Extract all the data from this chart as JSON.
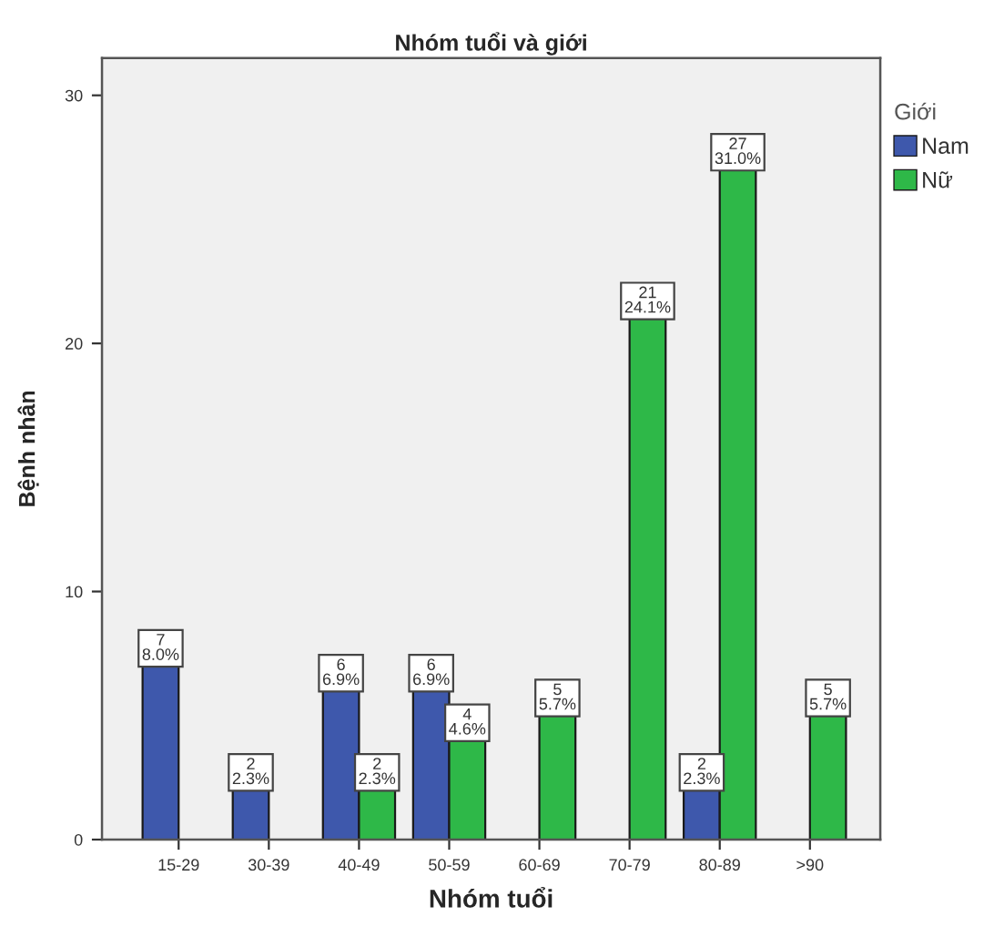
{
  "chart_data": {
    "type": "bar",
    "title": "Nhóm tuổi và giới",
    "xlabel": "Nhóm tuổi",
    "ylabel": "Bệnh nhân",
    "legend_title": "Giới",
    "categories": [
      "15-29",
      "30-39",
      "40-49",
      "50-59",
      "60-69",
      "70-79",
      "80-89",
      ">90"
    ],
    "series": [
      {
        "name": "Nam",
        "color": "#3e58ac",
        "values": [
          7,
          2,
          6,
          6,
          null,
          null,
          2,
          null
        ],
        "value_labels": [
          "7\n8.0%",
          "2\n2.3%",
          "6\n6.9%",
          "6\n6.9%",
          null,
          null,
          "2\n2.3%",
          null
        ]
      },
      {
        "name": "Nữ",
        "color": "#2eb848",
        "values": [
          null,
          null,
          2,
          4,
          5,
          21,
          27,
          5
        ],
        "value_labels": [
          null,
          null,
          "2\n2.3%",
          "4\n4.6%",
          "5\n5.7%",
          "21\n24.1%",
          "27\n31.0%",
          "5\n5.7%"
        ]
      }
    ],
    "ylim": [
      0,
      31.5
    ],
    "yticks": [
      0,
      10,
      20,
      30
    ],
    "legend": "right"
  }
}
